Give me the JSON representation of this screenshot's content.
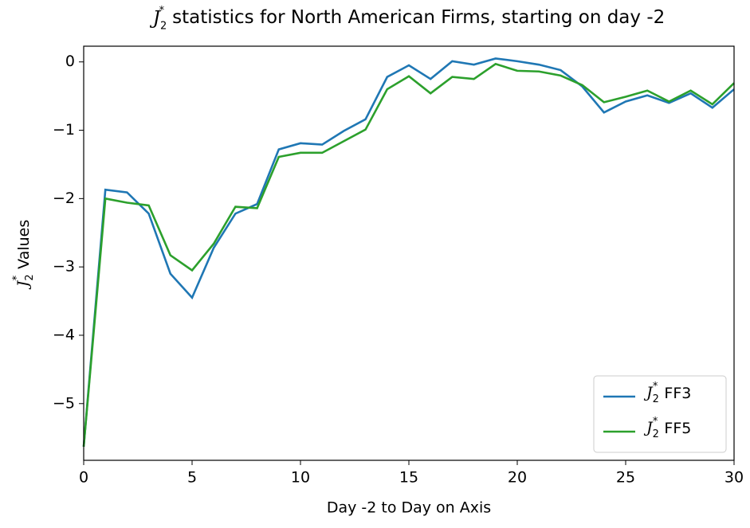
{
  "chart_data": {
    "type": "line",
    "symbol": {
      "base": "J",
      "sub": "2",
      "sup": "*"
    },
    "title": "statistics for  North American Firms, starting on day -2",
    "xlabel": "Day -2 to Day on Axis",
    "ylabel": "Values",
    "x": [
      0,
      1,
      2,
      3,
      4,
      5,
      6,
      7,
      8,
      9,
      10,
      11,
      12,
      13,
      14,
      15,
      16,
      17,
      18,
      19,
      20,
      21,
      22,
      23,
      24,
      25,
      26,
      27,
      28,
      29,
      30
    ],
    "series": [
      {
        "name": "FF3",
        "color": "#1f77b4",
        "values": [
          -5.63,
          -1.87,
          -1.91,
          -2.22,
          -3.1,
          -3.45,
          -2.72,
          -2.22,
          -2.08,
          -1.28,
          -1.19,
          -1.21,
          -1.01,
          -0.84,
          -0.22,
          -0.05,
          -0.25,
          0.01,
          -0.04,
          0.05,
          0.01,
          -0.04,
          -0.12,
          -0.36,
          -0.74,
          -0.58,
          -0.49,
          -0.6,
          -0.46,
          -0.67,
          -0.4
        ]
      },
      {
        "name": "FF5",
        "color": "#2ca02c",
        "values": [
          -5.63,
          -2.0,
          -2.06,
          -2.1,
          -2.83,
          -3.05,
          -2.66,
          -2.12,
          -2.14,
          -1.39,
          -1.33,
          -1.33,
          -1.16,
          -0.99,
          -0.4,
          -0.21,
          -0.46,
          -0.22,
          -0.25,
          -0.03,
          -0.13,
          -0.14,
          -0.2,
          -0.34,
          -0.59,
          -0.51,
          -0.42,
          -0.58,
          -0.42,
          -0.62,
          -0.31
        ]
      }
    ],
    "xlim": [
      0,
      30
    ],
    "xticks": [
      0,
      5,
      10,
      15,
      20,
      25,
      30
    ],
    "ylim": [
      -5.83,
      0.23
    ],
    "yticks": [
      {
        "value": -5,
        "label": "−5"
      },
      {
        "value": -4,
        "label": "−4"
      },
      {
        "value": -3,
        "label": "−3"
      },
      {
        "value": -2,
        "label": "−2"
      },
      {
        "value": -1,
        "label": "−1"
      },
      0
    ],
    "legend": "lower right"
  }
}
